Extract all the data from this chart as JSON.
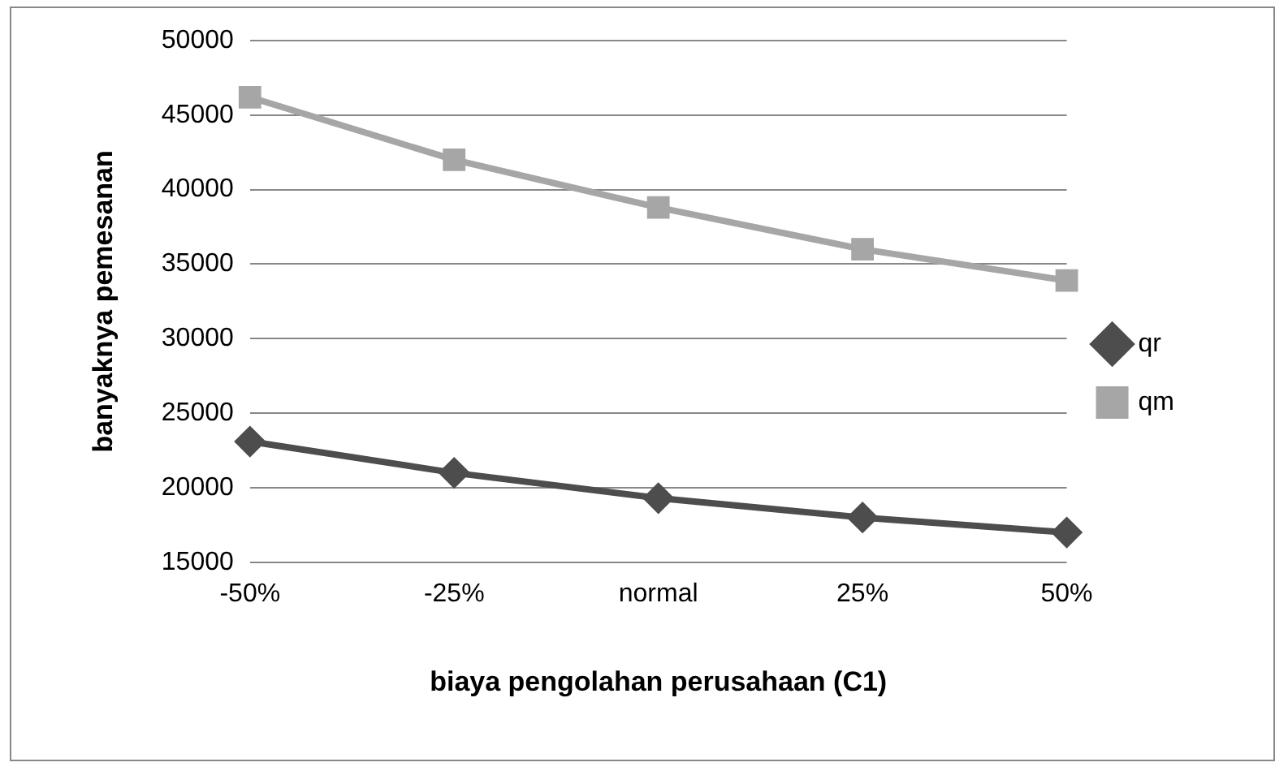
{
  "chart_data": {
    "type": "line",
    "xlabel": "biaya pengolahan perusahaan (C1)",
    "ylabel": "banyaknya pemesanan",
    "categories": [
      "-50%",
      "-25%",
      "normal",
      "25%",
      "50%"
    ],
    "series": [
      {
        "name": "qr",
        "color": "#4d4d4d",
        "marker": "diamond",
        "values": [
          23100,
          21000,
          19300,
          18000,
          17000
        ]
      },
      {
        "name": "qm",
        "color": "#a6a6a6",
        "marker": "square",
        "values": [
          46200,
          42000,
          38800,
          36000,
          33900
        ]
      }
    ],
    "ylim": [
      15000,
      50000
    ],
    "yticks": [
      15000,
      20000,
      25000,
      30000,
      35000,
      40000,
      45000,
      50000
    ],
    "grid": "y",
    "legend": "right",
    "line_style": "solid"
  }
}
